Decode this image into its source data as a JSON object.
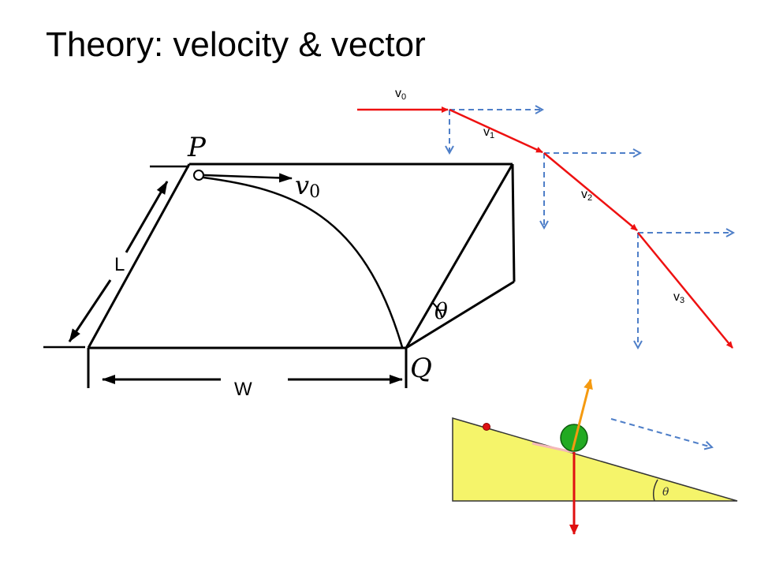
{
  "title": "Theory: velocity & vector",
  "incline_figure": {
    "point_top": "P",
    "point_bottom": "Q",
    "velocity": "v",
    "velocity_sub": "0",
    "angle": "θ",
    "length_label": "L",
    "width_label": "W"
  },
  "vector_figure": {
    "labels": [
      {
        "base": "v",
        "sub": "0"
      },
      {
        "base": "v",
        "sub": "1"
      },
      {
        "base": "v",
        "sub": "2"
      },
      {
        "base": "v",
        "sub": "3"
      }
    ],
    "colors": {
      "trajectory": "#ee1111",
      "components": "#4f7fc8"
    }
  },
  "slope_figure": {
    "angle": "θ",
    "colors": {
      "slope": "#f5f46a",
      "ball": "#22aa22",
      "normal": "#f59a10",
      "weight": "#e01010",
      "marker": "#dd1111"
    }
  }
}
